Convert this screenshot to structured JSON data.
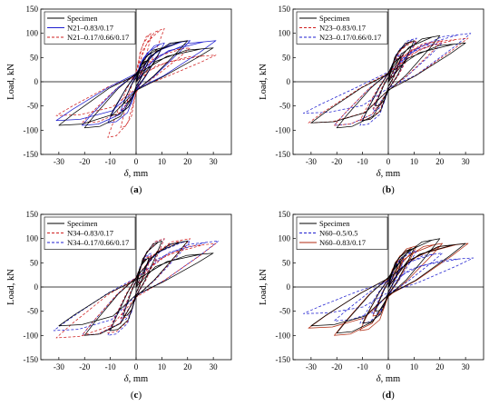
{
  "figure": {
    "panels": [
      "(a)",
      "(b)",
      "(c)",
      "(d)"
    ]
  },
  "chart_data": [
    {
      "type": "line",
      "panel_label": "(a)",
      "xlabel_symbol": "δ",
      "xlabel_unit": ", mm",
      "ylabel": "Load, kN",
      "xlim": [
        -37,
        37
      ],
      "ylim": [
        -150,
        150
      ],
      "xticks": [
        -30,
        -20,
        -10,
        0,
        10,
        20,
        30
      ],
      "yticks": [
        -150,
        -100,
        -50,
        0,
        50,
        100,
        150
      ],
      "legend": "top-left",
      "series": [
        {
          "name": "Specimen",
          "color": "#000000",
          "dash": "solid",
          "amps": [
            [
              5,
              45,
              -5,
              -45
            ],
            [
              10,
              70,
              -10,
              -70
            ],
            [
              20,
              85,
              -20,
              -95
            ],
            [
              30,
              70,
              -30,
              -90
            ]
          ]
        },
        {
          "name": "N21–0.83/0.17",
          "color": "#1f1fd0",
          "dash": "solid",
          "amps": [
            [
              6,
              60,
              -6,
              -60
            ],
            [
              11,
              80,
              -11,
              -85
            ],
            [
              21,
              85,
              -21,
              -90
            ],
            [
              31,
              85,
              -31,
              -80
            ]
          ]
        },
        {
          "name": "N21–0.17/0.66/0.17",
          "color": "#d02020",
          "dash": "dashed",
          "amps": [
            [
              6,
              100,
              -6,
              -95
            ],
            [
              11,
              110,
              -11,
              -115
            ],
            [
              21,
              70,
              -21,
              -85
            ],
            [
              31,
              55,
              -31,
              -70
            ]
          ]
        }
      ]
    },
    {
      "type": "line",
      "panel_label": "(b)",
      "xlabel_symbol": "δ",
      "xlabel_unit": ", mm",
      "ylabel": "Load, kN",
      "xlim": [
        -37,
        37
      ],
      "ylim": [
        -150,
        150
      ],
      "xticks": [
        -30,
        -20,
        -10,
        0,
        10,
        20,
        30
      ],
      "yticks": [
        -150,
        -100,
        -50,
        0,
        50,
        100,
        150
      ],
      "legend": "top-left",
      "series": [
        {
          "name": "Specimen",
          "color": "#000000",
          "dash": "solid",
          "amps": [
            [
              5,
              50,
              -5,
              -50
            ],
            [
              10,
              85,
              -10,
              -80
            ],
            [
              20,
              95,
              -20,
              -95
            ],
            [
              30,
              80,
              -30,
              -85
            ]
          ]
        },
        {
          "name": "N23–0.83/0.17",
          "color": "#d02020",
          "dash": "dashed",
          "amps": [
            [
              6,
              55,
              -6,
              -55
            ],
            [
              11,
              85,
              -11,
              -80
            ],
            [
              21,
              85,
              -21,
              -90
            ],
            [
              31,
              90,
              -31,
              -85
            ]
          ]
        },
        {
          "name": "N23–0.17/0.66/0.17",
          "color": "#1f1fd0",
          "dash": "dashed",
          "amps": [
            [
              6,
              60,
              -6,
              -60
            ],
            [
              11,
              90,
              -11,
              -90
            ],
            [
              21,
              80,
              -21,
              -90
            ],
            [
              32,
              100,
              -33,
              -65
            ]
          ]
        }
      ]
    },
    {
      "type": "line",
      "panel_label": "(c)",
      "xlabel_symbol": "δ",
      "xlabel_unit": ", mm",
      "ylabel": "Load, kN",
      "xlim": [
        -37,
        37
      ],
      "ylim": [
        -150,
        150
      ],
      "xticks": [
        -30,
        -20,
        -10,
        0,
        10,
        20,
        30
      ],
      "yticks": [
        -150,
        -100,
        -50,
        0,
        50,
        100,
        150
      ],
      "legend": "top-left",
      "series": [
        {
          "name": "Specimen",
          "color": "#000000",
          "dash": "solid",
          "amps": [
            [
              5,
              60,
              -5,
              -60
            ],
            [
              10,
              95,
              -10,
              -90
            ],
            [
              20,
              95,
              -20,
              -100
            ],
            [
              30,
              70,
              -30,
              -80
            ]
          ]
        },
        {
          "name": "N34–0.83/0.17",
          "color": "#d02020",
          "dash": "dashed",
          "amps": [
            [
              6,
              65,
              -6,
              -65
            ],
            [
              11,
              100,
              -11,
              -95
            ],
            [
              21,
              100,
              -21,
              -100
            ],
            [
              31,
              90,
              -31,
              -105
            ]
          ]
        },
        {
          "name": "N34–0.17/0.66/0.17",
          "color": "#1f1fd0",
          "dash": "dashed",
          "amps": [
            [
              6,
              70,
              -6,
              -70
            ],
            [
              11,
              100,
              -11,
              -100
            ],
            [
              21,
              95,
              -21,
              -100
            ],
            [
              32,
              95,
              -32,
              -90
            ]
          ]
        }
      ]
    },
    {
      "type": "line",
      "panel_label": "(d)",
      "xlabel_symbol": "δ",
      "xlabel_unit": ", mm",
      "ylabel": "Load, kN",
      "xlim": [
        -37,
        37
      ],
      "ylim": [
        -150,
        150
      ],
      "xticks": [
        -30,
        -20,
        -10,
        0,
        10,
        20,
        30
      ],
      "yticks": [
        -150,
        -100,
        -50,
        0,
        50,
        100,
        150
      ],
      "legend": "top-left",
      "series": [
        {
          "name": "Specimen",
          "color": "#000000",
          "dash": "solid",
          "amps": [
            [
              5,
              50,
              -5,
              -50
            ],
            [
              10,
              80,
              -10,
              -75
            ],
            [
              20,
              100,
              -20,
              -95
            ],
            [
              30,
              90,
              -30,
              -80
            ]
          ]
        },
        {
          "name": "N60–0.5/0.5",
          "color": "#1f1fd0",
          "dash": "dashed",
          "amps": [
            [
              6,
              55,
              -6,
              -55
            ],
            [
              11,
              75,
              -11,
              -75
            ],
            [
              21,
              70,
              -21,
              -70
            ],
            [
              33,
              60,
              -33,
              -55
            ]
          ]
        },
        {
          "name": "N60–0.83/0.17",
          "color": "#b02a10",
          "dash": "solid",
          "amps": [
            [
              6,
              60,
              -6,
              -60
            ],
            [
              11,
              85,
              -11,
              -90
            ],
            [
              21,
              90,
              -21,
              -100
            ],
            [
              31,
              90,
              -31,
              -85
            ]
          ]
        }
      ]
    }
  ]
}
